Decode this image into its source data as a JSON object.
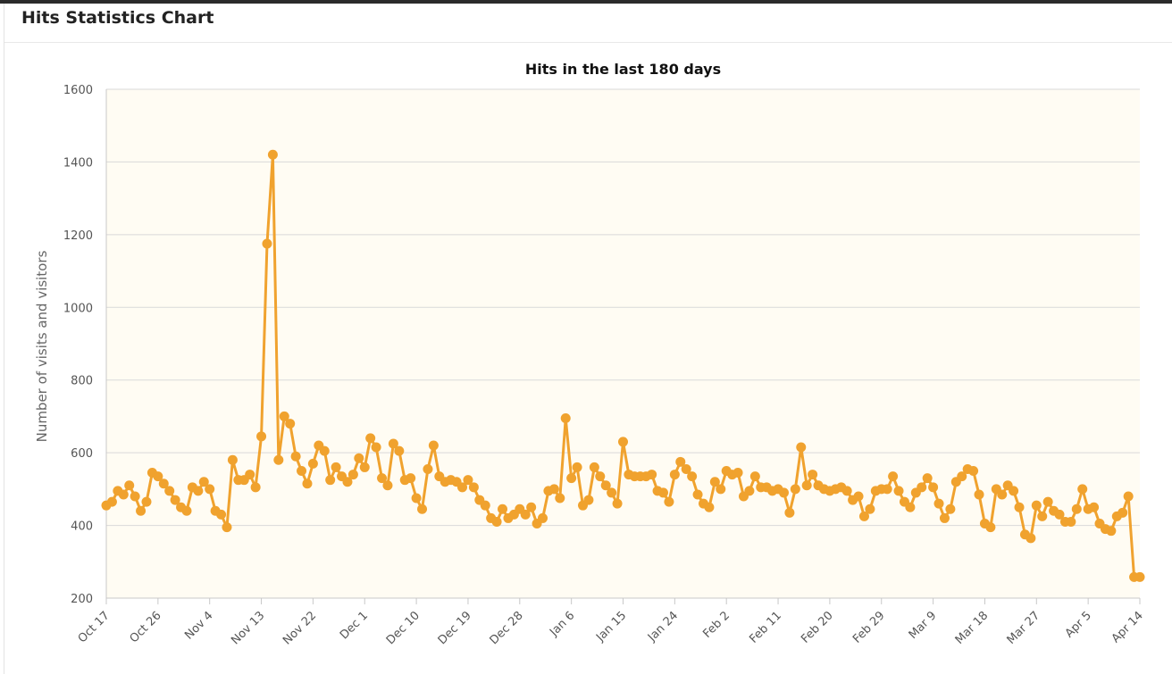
{
  "panel": {
    "title": "Hits Statistics Chart"
  },
  "colors": {
    "series": "#F0A22E",
    "plot_background": "#FFFCF3",
    "grid": "#D9D9D9"
  },
  "chart_data": {
    "type": "line",
    "title": "Hits in the last 180 days",
    "xlabel": "",
    "ylabel": "Number of visits and visitors",
    "ylim": [
      200,
      1600
    ],
    "yticks": [
      200,
      400,
      600,
      800,
      1000,
      1200,
      1400,
      1600
    ],
    "xticks": [
      "Oct 17",
      "Oct 26",
      "Nov 4",
      "Nov 13",
      "Nov 22",
      "Dec 1",
      "Dec 10",
      "Dec 19",
      "Dec 28",
      "Jan 6",
      "Jan 15",
      "Jan 24",
      "Feb 2",
      "Feb 11",
      "Feb 20",
      "Feb 29",
      "Mar 9",
      "Mar 18",
      "Mar 27",
      "Apr 5",
      "Apr 14"
    ],
    "grid": true,
    "legend": false,
    "series": [
      {
        "values": [
          455,
          465,
          495,
          485,
          510,
          480,
          440,
          465,
          545,
          535,
          515,
          495,
          470,
          450,
          440,
          505,
          495,
          520,
          500,
          440,
          430,
          395,
          580,
          525,
          525,
          540,
          505,
          645,
          1175,
          1420,
          580,
          700,
          680,
          590,
          550,
          515,
          570,
          620,
          605,
          525,
          560,
          535,
          520,
          540,
          585,
          560,
          640,
          615,
          530,
          510,
          625,
          605,
          525,
          530,
          475,
          445,
          555,
          620,
          535,
          520,
          525,
          520,
          505,
          525,
          505,
          470,
          455,
          420,
          410,
          445,
          420,
          430,
          445,
          430,
          450,
          405,
          420,
          495,
          500,
          475,
          695,
          530,
          560,
          455,
          470,
          560,
          535,
          510,
          490,
          460,
          630,
          540,
          535,
          535,
          535,
          540,
          495,
          490,
          465,
          540,
          575,
          555,
          535,
          485,
          460,
          450,
          520,
          500,
          550,
          540,
          545,
          480,
          495,
          535,
          505,
          505,
          495,
          500,
          490,
          435,
          500,
          615,
          510,
          540,
          510,
          500,
          495,
          500,
          505,
          495,
          470,
          480,
          425,
          445,
          495,
          500,
          500,
          535,
          495,
          465,
          450,
          490,
          505,
          530,
          505,
          460,
          420,
          445,
          520,
          535,
          555,
          550,
          485,
          405,
          395,
          500,
          485,
          510,
          495,
          450,
          375,
          365,
          455,
          425,
          465,
          440,
          430,
          410,
          410,
          445,
          500,
          445,
          450,
          405,
          390,
          385,
          425,
          435,
          480,
          258,
          258
        ]
      }
    ]
  }
}
